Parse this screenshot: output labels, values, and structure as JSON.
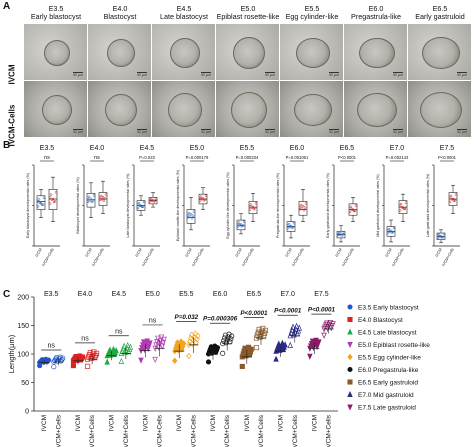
{
  "panel_labels": {
    "a": "A",
    "b": "B",
    "c": "C"
  },
  "panelA": {
    "stages": [
      {
        "code": "E3.5",
        "name": "Early blastocyst"
      },
      {
        "code": "E4.0",
        "name": "Blastocyst"
      },
      {
        "code": "E4.5",
        "name": "Late blastocyst"
      },
      {
        "code": "E5.0",
        "name": "Epiblast rosette-like"
      },
      {
        "code": "E5.5",
        "name": "Egg cylinder-like"
      },
      {
        "code": "E6.0",
        "name": "Pregastrula-like"
      },
      {
        "code": "E6.5",
        "name": "Early gastruloid"
      }
    ],
    "rows": [
      "IVCM",
      "IVCM-Cells"
    ],
    "scale_bar": "50 μm"
  },
  "chart_data": [
    {
      "type": "box",
      "panel": "B",
      "groups": [
        "IVCM",
        "IVCM+Cells"
      ],
      "colors": {
        "IVCM": "#1f5fbf",
        "IVCM+Cells": "#cc2020"
      },
      "subplots": [
        {
          "stage": "E3.5",
          "ylabel": "Early blastocyst developmental rates (%)",
          "sig": "ns",
          "ivcm": [
            35,
            45,
            55,
            62,
            70
          ],
          "cells": [
            30,
            45,
            58,
            70,
            85
          ]
        },
        {
          "stage": "E4.0",
          "ylabel": "Blastocyst developmental rates (%)",
          "sig": "ns",
          "ivcm": [
            35,
            48,
            57,
            65,
            78
          ],
          "cells": [
            40,
            50,
            58,
            66,
            80
          ]
        },
        {
          "stage": "E4.5",
          "ylabel": "Late blastocyst developmental rates (%)",
          "sig": "P=0.023",
          "ivcm": [
            38,
            44,
            50,
            56,
            62
          ],
          "cells": [
            48,
            52,
            56,
            60,
            66
          ]
        },
        {
          "stage": "E5.0",
          "ylabel": "Epiblast rosette-like developmental rates (%)",
          "sig": "P=0.000179",
          "ivcm": [
            20,
            28,
            35,
            45,
            60
          ],
          "cells": [
            45,
            52,
            58,
            64,
            72
          ]
        },
        {
          "stage": "E5.5",
          "ylabel": "Egg cylinder-like developmental rates (%)",
          "sig": "P=0.000234",
          "ivcm": [
            15,
            20,
            25,
            32,
            40
          ],
          "cells": [
            30,
            40,
            48,
            55,
            65
          ]
        },
        {
          "stage": "E6.0",
          "ylabel": "Pregastrula-like developmental rates (%)",
          "sig": "P=0.001061",
          "ivcm": [
            10,
            18,
            24,
            30,
            38
          ],
          "cells": [
            30,
            38,
            45,
            55,
            70
          ]
        },
        {
          "stage": "E6.5",
          "ylabel": "Early gastruloid developmental rates (%)",
          "sig": "P<0.0001",
          "ivcm": [
            5,
            10,
            14,
            18,
            25
          ],
          "cells": [
            30,
            38,
            45,
            52,
            60
          ]
        },
        {
          "stage": "E7.0",
          "ylabel": "Mid gastruloid developmental rates (%)",
          "sig": "P=0.002143",
          "ivcm": [
            5,
            12,
            18,
            24,
            32
          ],
          "cells": [
            30,
            40,
            48,
            56,
            64
          ]
        },
        {
          "stage": "E7.5",
          "ylabel": "Late gastruloid developmental rates (%)",
          "sig": "P<0.0001",
          "ivcm": [
            4,
            8,
            12,
            16,
            20
          ],
          "cells": [
            40,
            50,
            58,
            66,
            75
          ]
        }
      ]
    },
    {
      "type": "scatter",
      "panel": "C",
      "ylabel": "Length(μm)",
      "ylim": [
        0,
        200
      ],
      "yticks": [
        0,
        50,
        100,
        150,
        200
      ],
      "xtick_labels": [
        "IVCM",
        "IVCM+Cells"
      ],
      "stages": [
        {
          "stage": "E3.5",
          "sig": "ns",
          "ivcm_mean": 85,
          "cells_mean": 86,
          "ivcm_sd": 4,
          "cells_sd": 6
        },
        {
          "stage": "E4.0",
          "sig": "ns",
          "ivcm_mean": 88,
          "cells_mean": 91,
          "ivcm_sd": 6,
          "cells_sd": 9
        },
        {
          "stage": "E4.5",
          "sig": "ns",
          "ivcm_mean": 97,
          "cells_mean": 101,
          "ivcm_sd": 8,
          "cells_sd": 10
        },
        {
          "stage": "E5.0",
          "sig": "ns",
          "ivcm_mean": 106,
          "cells_mean": 110,
          "ivcm_sd": 12,
          "cells_sd": 14
        },
        {
          "stage": "E5.5",
          "sig": "P=0.032",
          "ivcm_mean": 105,
          "cells_mean": 116,
          "ivcm_sd": 12,
          "cells_sd": 14
        },
        {
          "stage": "E6.0",
          "sig": "P=0.000306",
          "ivcm_mean": 100,
          "cells_mean": 118,
          "ivcm_sd": 10,
          "cells_sd": 12
        },
        {
          "stage": "E6.5",
          "sig": "P<0.0001",
          "ivcm_mean": 95,
          "cells_mean": 128,
          "ivcm_sd": 12,
          "cells_sd": 12
        },
        {
          "stage": "E7.0",
          "sig": "P<0.0001",
          "ivcm_mean": 105,
          "cells_mean": 132,
          "ivcm_sd": 10,
          "cells_sd": 12
        },
        {
          "stage": "E7.5",
          "sig": "P<0.0001",
          "ivcm_mean": 110,
          "cells_mean": 144,
          "ivcm_sd": 10,
          "cells_sd": 8
        }
      ],
      "legend": [
        {
          "label": "E3.5 Early blastocyst",
          "color": "#2255cc",
          "marker": "circle"
        },
        {
          "label": "E4.0 Blastocyst",
          "color": "#dd2222",
          "marker": "square"
        },
        {
          "label": "E4.5 Late blastocyst",
          "color": "#22aa44",
          "marker": "triangle-up"
        },
        {
          "label": "E5.0 Epiblast rosette-like",
          "color": "#b03ab0",
          "marker": "triangle-down"
        },
        {
          "label": "E5.5 Egg cylinder-like",
          "color": "#f2a41c",
          "marker": "diamond"
        },
        {
          "label": "E6.0 Pregastrula-like",
          "color": "#111111",
          "marker": "circle"
        },
        {
          "label": "E6.5 Early gastruloid",
          "color": "#8b5a2b",
          "marker": "square"
        },
        {
          "label": "E7.0 Mid gastruloid",
          "color": "#2a2a8c",
          "marker": "triangle-up"
        },
        {
          "label": "E7.5 Late gastruloid",
          "color": "#8a1a6a",
          "marker": "triangle-down"
        }
      ]
    }
  ]
}
